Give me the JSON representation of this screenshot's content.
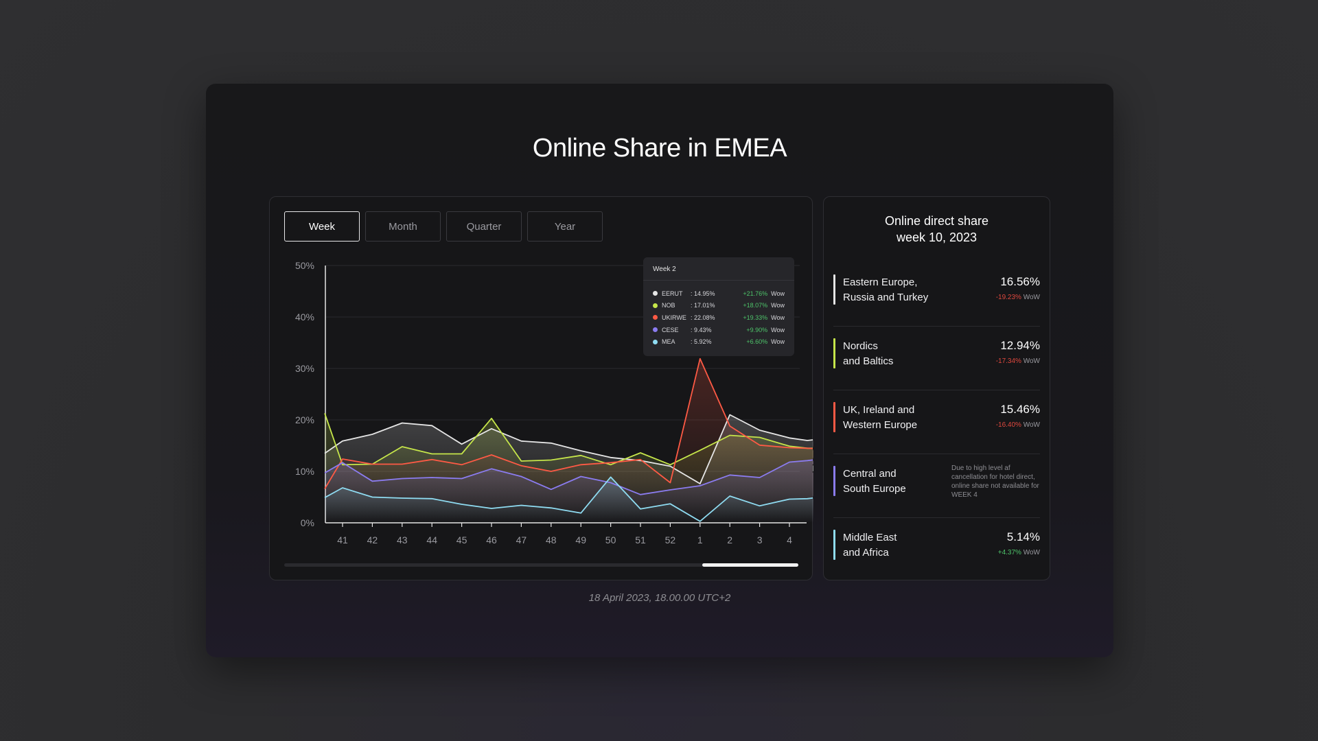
{
  "title": "Online Share in EMEA",
  "tabs": [
    {
      "label": "Week",
      "active": true
    },
    {
      "label": "Month",
      "active": false
    },
    {
      "label": "Quarter",
      "active": false
    },
    {
      "label": "Year",
      "active": false
    }
  ],
  "timestamp": "18 April 2023, 18.00.00 UTC+2",
  "tooltip": {
    "title": "Week 2",
    "rows": [
      {
        "name": "EERUT",
        "value": ": 14.95%",
        "change": "+21.76%",
        "wow": "Wow",
        "color": "#e6e6e6"
      },
      {
        "name": "NOB",
        "value": ": 17.01%",
        "change": "+18.07%",
        "wow": "Wow",
        "color": "#c6e64a"
      },
      {
        "name": "UKIRWE",
        "value": ": 22.08%",
        "change": "+19.33%",
        "wow": "Wow",
        "color": "#ff5a45"
      },
      {
        "name": "CESE",
        "value": ": 9.43%",
        "change": "+9.90%",
        "wow": "Wow",
        "color": "#8b7cf0"
      },
      {
        "name": "MEA",
        "value": ": 5.92%",
        "change": "+6.60%",
        "wow": "Wow",
        "color": "#8fdcf2"
      }
    ]
  },
  "side": {
    "title_line1": "Online direct share",
    "title_line2": "week 10, 2023",
    "regions": [
      {
        "line1": "Eastern Europe,",
        "line2": "Russia and Turkey",
        "value": "16.56%",
        "change": "-19.23%",
        "direction": "neg",
        "wow": "WoW",
        "color": "#e6e6e6"
      },
      {
        "line1": "Nordics",
        "line2": "and Baltics",
        "value": "12.94%",
        "change": "-17.34%",
        "direction": "neg",
        "wow": "WoW",
        "color": "#c6e64a"
      },
      {
        "line1": "UK, Ireland and",
        "line2": "Western Europe",
        "value": "15.46%",
        "change": "-16.40%",
        "direction": "neg",
        "wow": "WoW",
        "color": "#ff5a45"
      },
      {
        "line1": "Central and",
        "line2": "South Europe",
        "note": "Due to high level af cancellation for hotel direct, online share not available for WEEK 4",
        "color": "#8b7cf0"
      },
      {
        "line1": "Middle East",
        "line2": "and Africa",
        "value": "5.14%",
        "change": "+4.37%",
        "direction": "pos",
        "wow": "WoW",
        "color": "#8fdcf2"
      }
    ]
  },
  "chart_data": {
    "type": "line",
    "categories": [
      "41",
      "42",
      "43",
      "44",
      "45",
      "46",
      "47",
      "48",
      "49",
      "50",
      "51",
      "52",
      "1",
      "2",
      "3",
      "4"
    ],
    "yticks": [
      "0%",
      "10%",
      "20%",
      "30%",
      "40%",
      "50%"
    ],
    "ylim": [
      0,
      50
    ],
    "grid": true,
    "x": [
      40.4,
      41,
      42,
      43,
      44,
      45,
      46,
      47,
      48,
      49,
      50,
      51,
      52,
      53,
      54,
      55,
      56,
      56.6,
      56.9
    ],
    "series": [
      {
        "name": "EERUT",
        "color": "#e6e6e6",
        "values": [
          13.5,
          15.9,
          17.2,
          19.4,
          18.9,
          15.3,
          18.3,
          15.9,
          15.5,
          14.0,
          12.7,
          12.1,
          11.0,
          7.6,
          21.0,
          18.0,
          16.5,
          16.0,
          16.2
        ]
      },
      {
        "name": "NOB",
        "color": "#c6e64a",
        "values": [
          21.3,
          11.3,
          11.4,
          14.8,
          13.4,
          13.4,
          20.3,
          12.0,
          12.2,
          13.1,
          11.3,
          13.6,
          11.3,
          14.1,
          17.0,
          16.6,
          14.9,
          14.5,
          14.5
        ]
      },
      {
        "name": "UKIRWE",
        "color": "#ff5a45",
        "values": [
          6.6,
          12.4,
          11.4,
          11.4,
          12.3,
          11.3,
          13.2,
          11.1,
          10.0,
          11.3,
          11.7,
          12.3,
          7.8,
          31.9,
          18.8,
          15.1,
          14.6,
          14.5,
          14.4
        ]
      },
      {
        "name": "CESE",
        "color": "#8b7cf0",
        "values": [
          9.7,
          11.7,
          8.1,
          8.6,
          8.8,
          8.6,
          10.5,
          9.0,
          6.5,
          9.0,
          7.8,
          5.5,
          6.4,
          7.2,
          9.3,
          8.8,
          11.8,
          12.1,
          12.3
        ]
      },
      {
        "name": "MEA",
        "color": "#8fdcf2",
        "values": [
          4.9,
          6.8,
          5.0,
          4.8,
          4.7,
          3.6,
          2.8,
          3.4,
          2.9,
          1.9,
          8.9,
          2.7,
          3.7,
          0.3,
          5.2,
          3.3,
          4.6,
          4.7,
          4.9
        ]
      }
    ]
  }
}
